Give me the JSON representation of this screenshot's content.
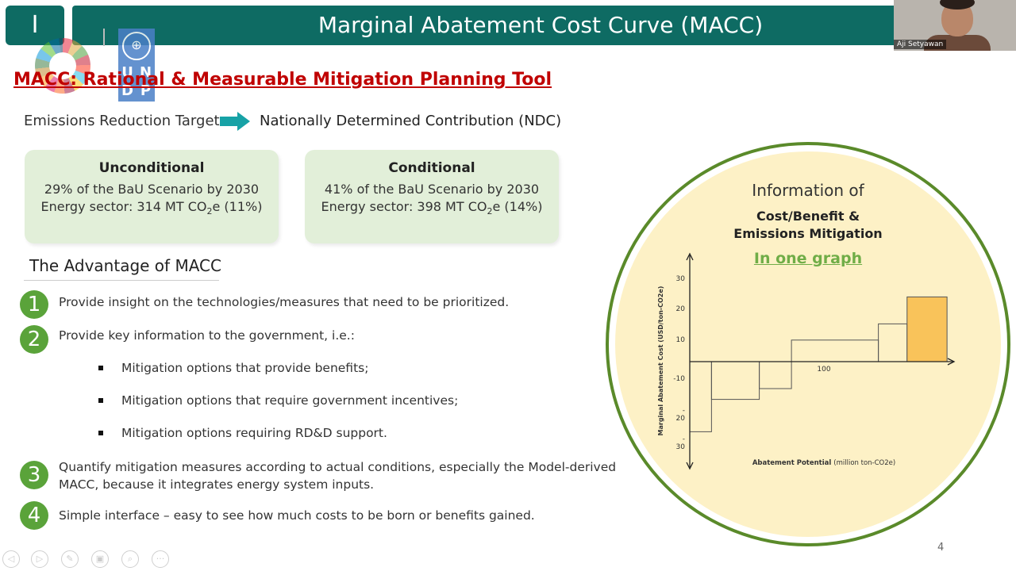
{
  "header": {
    "logo_char": "I",
    "title": "Marginal Abatement Cost Curve (MACC)",
    "undp_letters": [
      "U",
      "N",
      "D",
      "P"
    ]
  },
  "subtitle": "MACC: Rational & Measurable Mitigation Planning Tool",
  "target": {
    "left": "Emissions Reduction Target",
    "right": "Nationally Determined Contribution (NDC)",
    "arrow_color": "#17a2a6"
  },
  "cards": {
    "unconditional": {
      "heading": "Unconditional",
      "line1": "29% of the BaU Scenario by 2030",
      "line2_pre": "Energy sector: 314 MT CO",
      "line2_sub": "2",
      "line2_post": "e (11%)"
    },
    "conditional": {
      "heading": "Conditional",
      "line1": "41% of the BaU Scenario by 2030",
      "line2_pre": "Energy sector: 398 MT CO",
      "line2_sub": "2",
      "line2_post": "e (14%)"
    }
  },
  "advantage": {
    "title": "The Advantage of MACC",
    "items": [
      {
        "num": "1",
        "text": "Provide insight on the technologies/measures that need to be prioritized."
      },
      {
        "num": "2",
        "text": "Provide key information to the government, i.e.:"
      },
      {
        "num": "3",
        "text": "Quantify mitigation measures according to actual conditions, especially the Model-derived",
        "text2": "MACC, because it integrates energy system inputs."
      },
      {
        "num": "4",
        "text": "Simple interface – easy to see how much costs to be born or benefits gained."
      }
    ],
    "bullets": [
      "Mitigation options that provide benefits;",
      "Mitigation options that require government incentives;",
      "Mitigation options requiring RD&D support."
    ]
  },
  "info": {
    "title": "Information of",
    "sub1": "Cost/Benefit &",
    "sub2": "Emissions Mitigation",
    "link": "In one graph"
  },
  "chart_data": {
    "type": "bar",
    "ylabel": "Marginal Abatement Cost (USD/ton-CO2e)",
    "xlabel": "Abatement Potential (million ton-CO2e)",
    "xlabel_bold": "Abatement Potential",
    "xlabel_unit": "(million ton-CO2e)",
    "y_ticks": [
      "30",
      "20",
      "10",
      "-10",
      "-\n20",
      "-\n30"
    ],
    "x_ticks": [
      "100"
    ],
    "ylim": [
      -30,
      30
    ],
    "highlight_color": "#f9c35a",
    "bars": [
      {
        "from": 0,
        "to": 25,
        "value": -26
      },
      {
        "from": 25,
        "to": 80,
        "value": -14
      },
      {
        "from": 80,
        "to": 117,
        "value": -10
      },
      {
        "from": 117,
        "to": 217,
        "value": 8
      },
      {
        "from": 217,
        "to": 250,
        "value": 14
      },
      {
        "from": 250,
        "to": 296,
        "value": 24,
        "highlight": true
      }
    ]
  },
  "video": {
    "name": "Aji Setyawan"
  },
  "toolbar": {
    "icons": [
      "prev-icon",
      "next-icon",
      "pen-icon",
      "slides-icon",
      "zoom-icon",
      "more-icon"
    ],
    "glyphs": [
      "◁",
      "▷",
      "✎",
      "▣",
      "⌕",
      "···"
    ]
  },
  "page_number": "4"
}
